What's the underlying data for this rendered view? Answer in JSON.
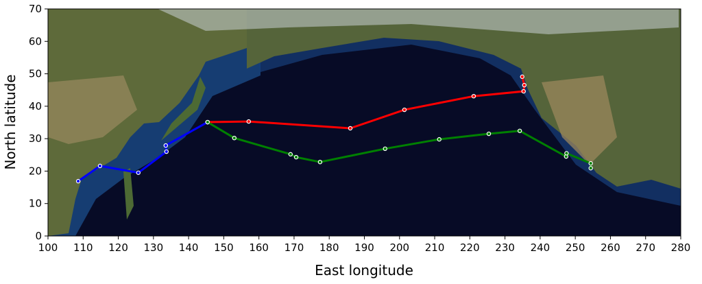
{
  "chart_data": {
    "type": "line",
    "xlabel": "East longitude",
    "ylabel": "North latitude",
    "xlim": [
      100,
      280
    ],
    "ylim": [
      0,
      70
    ],
    "xticks": [
      100,
      110,
      120,
      130,
      140,
      150,
      160,
      170,
      180,
      190,
      200,
      210,
      220,
      230,
      240,
      250,
      260,
      270,
      280
    ],
    "yticks": [
      0,
      10,
      20,
      30,
      40,
      50,
      60,
      70
    ],
    "grid": false,
    "background": "satellite map of the North Pacific",
    "series": [
      {
        "color": "#0000ff",
        "markers": true,
        "points": [
          [
            108.6,
            16.9
          ],
          [
            114.8,
            21.6
          ],
          [
            125.7,
            19.5
          ],
          [
            133.7,
            26.0
          ],
          [
            133.5,
            27.9
          ],
          [
            145.4,
            35.1
          ]
        ]
      },
      {
        "color": "#ff0000",
        "markers": true,
        "points": [
          [
            145.4,
            35.1
          ],
          [
            157.1,
            35.3
          ],
          [
            186.0,
            33.2
          ],
          [
            201.4,
            38.9
          ],
          [
            221.1,
            43.1
          ],
          [
            235.3,
            44.6
          ],
          [
            235.5,
            46.5
          ],
          [
            234.9,
            49.1
          ]
        ]
      },
      {
        "color": "#008000",
        "markers": true,
        "points": [
          [
            145.4,
            35.1
          ],
          [
            153.0,
            30.2
          ],
          [
            169.0,
            25.2
          ],
          [
            170.6,
            24.3
          ],
          [
            177.4,
            22.8
          ],
          [
            195.9,
            26.9
          ],
          [
            211.3,
            29.8
          ],
          [
            225.4,
            31.5
          ],
          [
            234.2,
            32.4
          ],
          [
            247.4,
            24.5
          ],
          [
            247.5,
            25.5
          ],
          [
            254.4,
            22.4
          ],
          [
            254.4,
            20.9
          ]
        ]
      }
    ]
  }
}
